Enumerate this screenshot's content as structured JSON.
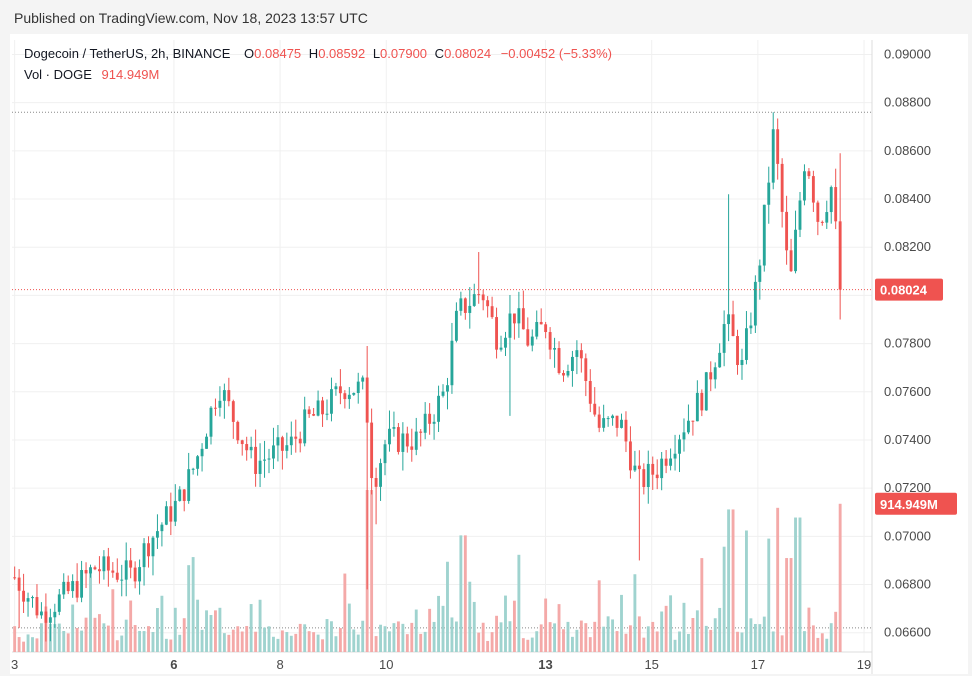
{
  "header": {
    "published": "Published on TradingView.com, Nov 18, 2023 13:57 UTC"
  },
  "legend": {
    "symbol": "Dogecoin / TetherUS, 2h, BINANCE",
    "o_label": "O",
    "o_value": "0.08475",
    "h_label": "H",
    "h_value": "0.08592",
    "l_label": "L",
    "l_value": "0.07900",
    "c_label": "C",
    "c_value": "0.08024",
    "change": "−0.00452 (−5.33%)",
    "vol_label": "Vol · DOGE",
    "vol_value": "914.949M"
  },
  "colors": {
    "up": "#26a69a",
    "down": "#ef5350",
    "vol_up": "#9fd3cf",
    "vol_down": "#f4a9a8",
    "grid": "#f0f0f0"
  },
  "chart_data": {
    "type": "candlestick",
    "title": "Dogecoin / TetherUS, 2h, BINANCE",
    "y_ticks": [
      "0.09000",
      "0.08800",
      "0.08600",
      "0.08400",
      "0.08200",
      "0.08000",
      "0.07800",
      "0.07600",
      "0.07400",
      "0.07200",
      "0.07000",
      "0.06800",
      "0.06600"
    ],
    "ylim": [
      0.0652,
      0.0906
    ],
    "x_ticks": [
      {
        "label": "3",
        "day": 3,
        "bold": false
      },
      {
        "label": "6",
        "day": 6,
        "bold": true
      },
      {
        "label": "8",
        "day": 8,
        "bold": false
      },
      {
        "label": "10",
        "day": 10,
        "bold": false
      },
      {
        "label": "13",
        "day": 13,
        "bold": true
      },
      {
        "label": "15",
        "day": 15,
        "bold": false
      },
      {
        "label": "17",
        "day": 17,
        "bold": false
      },
      {
        "label": "19",
        "day": 19,
        "bold": false
      }
    ],
    "xlim": [
      2.95,
      19.15
    ],
    "last_price": 0.08024,
    "last_price_label": "0.08024",
    "last_volume_label": "914.949M",
    "hi_dotted": 0.0876,
    "lo_dotted": 0.0662,
    "anchors": [
      [
        3.0,
        0.0683
      ],
      [
        3.5,
        0.0668
      ],
      [
        4.2,
        0.068
      ],
      [
        4.5,
        0.0687
      ],
      [
        5.2,
        0.0684
      ],
      [
        5.5,
        0.0697
      ],
      [
        6.1,
        0.0715
      ],
      [
        6.4,
        0.073
      ],
      [
        6.85,
        0.0763
      ],
      [
        7.2,
        0.0745
      ],
      [
        7.5,
        0.073
      ],
      [
        8.2,
        0.0738
      ],
      [
        8.5,
        0.0748
      ],
      [
        8.8,
        0.0752
      ],
      [
        9.2,
        0.0762
      ],
      [
        9.6,
        0.0761
      ],
      [
        9.75,
        0.0722
      ],
      [
        10.0,
        0.074
      ],
      [
        10.6,
        0.074
      ],
      [
        11.1,
        0.076
      ],
      [
        11.35,
        0.0793
      ],
      [
        11.8,
        0.0802
      ],
      [
        12.1,
        0.0782
      ],
      [
        12.4,
        0.0793
      ],
      [
        12.7,
        0.078
      ],
      [
        13.0,
        0.0788
      ],
      [
        13.3,
        0.077
      ],
      [
        13.6,
        0.0778
      ],
      [
        14.0,
        0.0745
      ],
      [
        14.4,
        0.0748
      ],
      [
        14.75,
        0.0722
      ],
      [
        15.1,
        0.0728
      ],
      [
        15.6,
        0.0746
      ],
      [
        16.0,
        0.076
      ],
      [
        16.4,
        0.079
      ],
      [
        16.7,
        0.077
      ],
      [
        17.0,
        0.0808
      ],
      [
        17.3,
        0.0868
      ],
      [
        17.6,
        0.0803
      ],
      [
        17.9,
        0.086
      ],
      [
        18.15,
        0.083
      ],
      [
        18.4,
        0.0846
      ],
      [
        18.55,
        0.0802
      ]
    ],
    "volume_max": 1000,
    "volume": {
      "base": [
        120,
        90,
        80,
        110,
        140,
        120,
        160,
        250,
        230,
        140,
        150,
        100,
        130,
        260,
        140,
        110,
        160,
        430,
        230,
        180,
        150,
        140,
        280,
        120,
        150,
        180,
        230,
        120,
        160,
        200,
        130,
        150,
        240,
        260,
        120,
        100,
        220,
        150,
        300,
        420,
        470,
        260,
        140,
        250,
        200,
        380,
        230,
        160,
        150,
        110,
        140,
        210,
        210,
        270,
        180,
        380,
        160
      ],
      "spikes": [
        [
          9.68,
          1000
        ],
        [
          11.45,
          720
        ],
        [
          12.5,
          600
        ],
        [
          13.0,
          330
        ],
        [
          16.35,
          650
        ],
        [
          16.5,
          880
        ],
        [
          16.8,
          750
        ],
        [
          17.2,
          700
        ],
        [
          17.35,
          890
        ],
        [
          17.6,
          580
        ],
        [
          17.75,
          830
        ],
        [
          18.55,
          914.949
        ],
        [
          14.7,
          480
        ],
        [
          15.2,
          250
        ]
      ]
    }
  }
}
